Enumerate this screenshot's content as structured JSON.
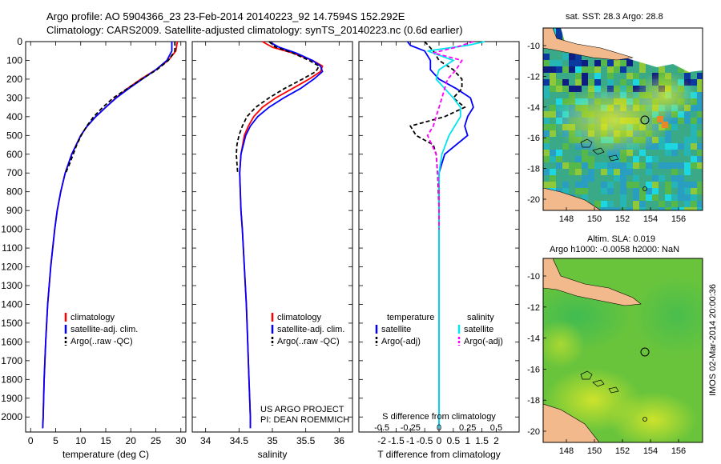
{
  "header": {
    "line1": "Argo profile: AO 5904366_23 23-Feb-2014 20140223_92 14.7594S 152.292E",
    "line2": "Climatology: CARS2009. Satellite-adjusted climatology: synTS_20140223.nc (0.6d earlier)"
  },
  "colors": {
    "climatology": "#ff0000",
    "satellite": "#0000ff",
    "argo": "#000000",
    "sat_salinity": "#00e5ee",
    "argo_salinity": "#ff00ff"
  },
  "depth_axis": {
    "ticks": [
      0,
      100,
      200,
      300,
      400,
      500,
      600,
      700,
      800,
      900,
      1000,
      1100,
      1200,
      1300,
      1400,
      1500,
      1600,
      1700,
      1800,
      1900,
      2000
    ],
    "range": [
      0,
      2080
    ]
  },
  "chart_data": [
    {
      "type": "line",
      "name": "temperature",
      "xlabel": "temperature (deg C)",
      "xlim": [
        -1,
        31
      ],
      "xticks": [
        0,
        5,
        10,
        15,
        20,
        25,
        30
      ],
      "legend": [
        "climatology",
        "satellite-adj. clim.",
        "Argo(..raw -QC)"
      ],
      "series": [
        {
          "name": "climatology",
          "depth": [
            0,
            50,
            100,
            150,
            200,
            250,
            300,
            350,
            400,
            450,
            500,
            600,
            700,
            800,
            900,
            1000,
            1200,
            1400,
            1600,
            1800,
            2000,
            2060
          ],
          "values": [
            29.3,
            29.0,
            27.5,
            25.0,
            22.0,
            19.3,
            17.0,
            15.0,
            13.0,
            11.3,
            10.0,
            8.2,
            6.9,
            6.0,
            5.3,
            4.8,
            4.0,
            3.4,
            3.0,
            2.7,
            2.5,
            2.4
          ]
        },
        {
          "name": "satellite-adj. clim.",
          "depth": [
            0,
            50,
            100,
            150,
            200,
            250,
            300,
            350,
            400,
            450,
            500,
            600,
            700,
            800,
            900,
            1000,
            1200,
            1400,
            1600,
            1800,
            2000,
            2060
          ],
          "values": [
            28.2,
            28.2,
            27.2,
            25.0,
            22.3,
            19.6,
            17.1,
            15.0,
            13.0,
            11.3,
            10.0,
            8.2,
            6.9,
            6.0,
            5.3,
            4.8,
            4.0,
            3.4,
            3.0,
            2.7,
            2.5,
            2.4
          ]
        },
        {
          "name": "Argo(..raw -QC)",
          "depth": [
            0,
            50,
            100,
            150,
            200,
            250,
            300,
            350,
            400,
            450,
            500,
            550,
            600,
            650,
            700
          ],
          "values": [
            28.8,
            28.8,
            27.5,
            25.2,
            22.2,
            19.3,
            16.5,
            14.4,
            12.6,
            11.2,
            10.1,
            9.2,
            8.5,
            7.8,
            7.0
          ]
        }
      ]
    },
    {
      "type": "line",
      "name": "salinity",
      "xlabel": "salinity",
      "xlim": [
        33.8,
        36.2
      ],
      "xticks": [
        34,
        34.5,
        35,
        35.5,
        36
      ],
      "legend": [
        "climatology",
        "satellite-adj. clim.",
        "Argo(..raw -QC)"
      ],
      "annotation": [
        "US ARGO PROJECT",
        "PI: DEAN ROEMMICH"
      ],
      "series": [
        {
          "name": "climatology",
          "depth": [
            0,
            30,
            60,
            100,
            130,
            160,
            200,
            250,
            300,
            350,
            400,
            450,
            500,
            600,
            700,
            800,
            900,
            1000,
            1200,
            1400,
            1600,
            1800,
            2000,
            2060
          ],
          "values": [
            34.85,
            35.0,
            35.3,
            35.6,
            35.75,
            35.72,
            35.55,
            35.3,
            35.05,
            34.85,
            34.72,
            34.64,
            34.58,
            34.53,
            34.51,
            34.52,
            34.53,
            34.55,
            34.58,
            34.61,
            34.63,
            34.65,
            34.67,
            34.67
          ]
        },
        {
          "name": "satellite-adj. clim.",
          "depth": [
            0,
            30,
            60,
            100,
            130,
            160,
            200,
            250,
            300,
            350,
            400,
            450,
            500,
            600,
            700,
            800,
            900,
            1000,
            1200,
            1400,
            1600,
            1800,
            2000,
            2060
          ],
          "values": [
            34.95,
            35.1,
            35.35,
            35.6,
            35.72,
            35.75,
            35.62,
            35.42,
            35.17,
            34.95,
            34.78,
            34.67,
            34.6,
            34.53,
            34.51,
            34.52,
            34.53,
            34.55,
            34.58,
            34.61,
            34.63,
            34.65,
            34.67,
            34.67
          ]
        },
        {
          "name": "Argo(..raw -QC)",
          "depth": [
            0,
            30,
            60,
            100,
            130,
            160,
            200,
            250,
            300,
            350,
            400,
            450,
            500,
            550,
            600,
            650,
            700
          ],
          "values": [
            34.95,
            35.05,
            35.3,
            35.55,
            35.7,
            35.65,
            35.45,
            35.18,
            34.95,
            34.75,
            34.62,
            34.55,
            34.5,
            34.47,
            34.46,
            34.47,
            34.48
          ]
        }
      ]
    },
    {
      "type": "line",
      "name": "difference",
      "xlabel": "T difference from climatology",
      "xlim": [
        -2.8,
        2.8
      ],
      "xticks": [
        -2,
        -1.5,
        -1,
        -0.5,
        0,
        0.5,
        1,
        1.5,
        2
      ],
      "xlabel_top": "S difference from climatology",
      "xticks_top": [
        "-0.5",
        "-0.25",
        "0",
        "0.25",
        "0.5"
      ],
      "legend_titles": [
        "temperature",
        "salinity"
      ],
      "legend": [
        "satellite",
        "Argo(-adj)",
        "satellite",
        "Argo(-adj)"
      ],
      "series": [
        {
          "name": "T satellite",
          "depth": [
            0,
            20,
            50,
            100,
            150,
            200,
            250,
            300,
            350,
            400,
            450,
            500,
            550,
            600,
            700,
            800,
            1000,
            1500,
            2000,
            2060
          ],
          "values": [
            -1.1,
            -1.0,
            -0.5,
            -0.3,
            -0.3,
            0.0,
            0.6,
            1.1,
            1.2,
            1.0,
            0.9,
            1.0,
            0.6,
            0.2,
            0.0,
            0.0,
            0.0,
            0.0,
            0.0,
            0.0
          ]
        },
        {
          "name": "T Argo(-adj)",
          "depth": [
            0,
            50,
            100,
            150,
            200,
            250,
            300,
            350,
            400,
            450,
            500,
            550,
            600,
            700,
            800,
            900,
            1000
          ],
          "values": [
            -0.5,
            -0.2,
            0.0,
            0.5,
            0.8,
            0.8,
            0.5,
            0.9,
            0.2,
            -1.0,
            -0.8,
            -0.2,
            -0.1,
            -0.05,
            -0.02,
            0.0,
            0.0
          ]
        },
        {
          "name": "S satellite",
          "depth": [
            0,
            20,
            50,
            100,
            150,
            200,
            250,
            300,
            350,
            400,
            450,
            500,
            600,
            700,
            800,
            1000,
            1500,
            2000,
            2060
          ],
          "values": [
            1.6,
            1.0,
            -0.4,
            0.5,
            0.0,
            -0.1,
            0.2,
            0.5,
            0.75,
            0.75,
            0.55,
            0.35,
            0.1,
            0.0,
            0.0,
            0.0,
            0.0,
            0.0,
            0.0
          ]
        },
        {
          "name": "S Argo(-adj)",
          "depth": [
            0,
            30,
            60,
            100,
            150,
            200,
            250,
            300,
            350,
            400,
            450,
            500,
            550,
            600,
            700,
            800,
            900,
            1000
          ],
          "values": [
            1.2,
            0.6,
            -0.2,
            0.8,
            0.6,
            0.3,
            0.2,
            0.1,
            0.0,
            -0.1,
            -0.2,
            -0.4,
            -0.25,
            -0.1,
            -0.05,
            0.0,
            0.0,
            0.0
          ]
        }
      ]
    }
  ],
  "map_top": {
    "title": "sat. SST: 28.3 Argo: 28.8",
    "yticks": [
      "-10",
      "-12",
      "-14",
      "-16",
      "-18",
      "-20"
    ],
    "xticks": [
      "148",
      "150",
      "152",
      "154",
      "156"
    ]
  },
  "map_bottom": {
    "title1": "Altim. SLA: 0.019",
    "title2": "Argo h1000: -0.0058 h2000: NaN",
    "yticks": [
      "-10",
      "-12",
      "-14",
      "-16",
      "-18",
      "-20"
    ],
    "xticks": [
      "148",
      "150",
      "152",
      "154",
      "156"
    ]
  },
  "footer": {
    "stamp": "IMOS 02-Mar-2014 20:00:36"
  }
}
